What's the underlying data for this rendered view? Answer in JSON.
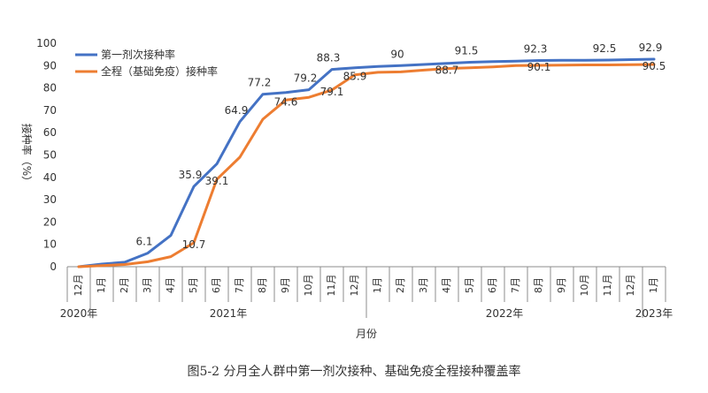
{
  "chart_data": {
    "type": "line",
    "title": "",
    "caption": "图5-2 分月全人群中第一剂次接种、基础免疫全程接种覆盖率",
    "xlabel": "月份",
    "ylabel": "接种率（%）",
    "ylim": [
      0,
      100
    ],
    "yticks": [
      0,
      10,
      20,
      30,
      40,
      50,
      60,
      70,
      80,
      90,
      100
    ],
    "grid": false,
    "legend_position": "top-left",
    "categories": [
      "12月",
      "1月",
      "2月",
      "3月",
      "4月",
      "5月",
      "6月",
      "7月",
      "8月",
      "9月",
      "10月",
      "11月",
      "12月",
      "1月",
      "2月",
      "3月",
      "4月",
      "5月",
      "6月",
      "7月",
      "8月",
      "9月",
      "10月",
      "11月",
      "12月",
      "1月"
    ],
    "year_groups": [
      {
        "label": "2020年",
        "start": 0,
        "end": 0
      },
      {
        "label": "2021年",
        "start": 1,
        "end": 12
      },
      {
        "label": "2022年",
        "start": 13,
        "end": 24
      },
      {
        "label": "2023年",
        "start": 25,
        "end": 25
      }
    ],
    "series": [
      {
        "name": "第一剂次接种率",
        "color": "#4472c4",
        "values": [
          0,
          1.2,
          2,
          6.1,
          14,
          35.9,
          46,
          64.9,
          77.2,
          78,
          79.2,
          88.3,
          89,
          89.6,
          90,
          90.5,
          91,
          91.5,
          91.8,
          92,
          92.3,
          92.4,
          92.4,
          92.5,
          92.7,
          92.9
        ],
        "labels": [
          {
            "index": 3,
            "text": "6.1"
          },
          {
            "index": 5,
            "text": "35.9"
          },
          {
            "index": 7,
            "text": "64.9"
          },
          {
            "index": 8,
            "text": "77.2"
          },
          {
            "index": 10,
            "text": "79.2"
          },
          {
            "index": 11,
            "text": "88.3"
          },
          {
            "index": 14,
            "text": "90"
          },
          {
            "index": 17,
            "text": "91.5"
          },
          {
            "index": 20,
            "text": "92.3"
          },
          {
            "index": 23,
            "text": "92.5"
          },
          {
            "index": 25,
            "text": "92.9"
          }
        ]
      },
      {
        "name": "全程（基础免疫）接种率",
        "color": "#ed7d31",
        "values": [
          0,
          0.5,
          1,
          2.2,
          4.5,
          10.7,
          39.1,
          49,
          66,
          74.6,
          75.8,
          79.1,
          85.9,
          87,
          87.2,
          88,
          88.7,
          89,
          89.4,
          90,
          90.1,
          90.2,
          90.3,
          90.3,
          90.4,
          90.5
        ],
        "labels": [
          {
            "index": 5,
            "text": "10.7"
          },
          {
            "index": 6,
            "text": "39.1"
          },
          {
            "index": 9,
            "text": "74.6"
          },
          {
            "index": 11,
            "text": "79.1"
          },
          {
            "index": 12,
            "text": "85.9"
          },
          {
            "index": 16,
            "text": "88.7"
          },
          {
            "index": 20,
            "text": "90.1"
          },
          {
            "index": 25,
            "text": "90.5"
          }
        ]
      }
    ]
  }
}
